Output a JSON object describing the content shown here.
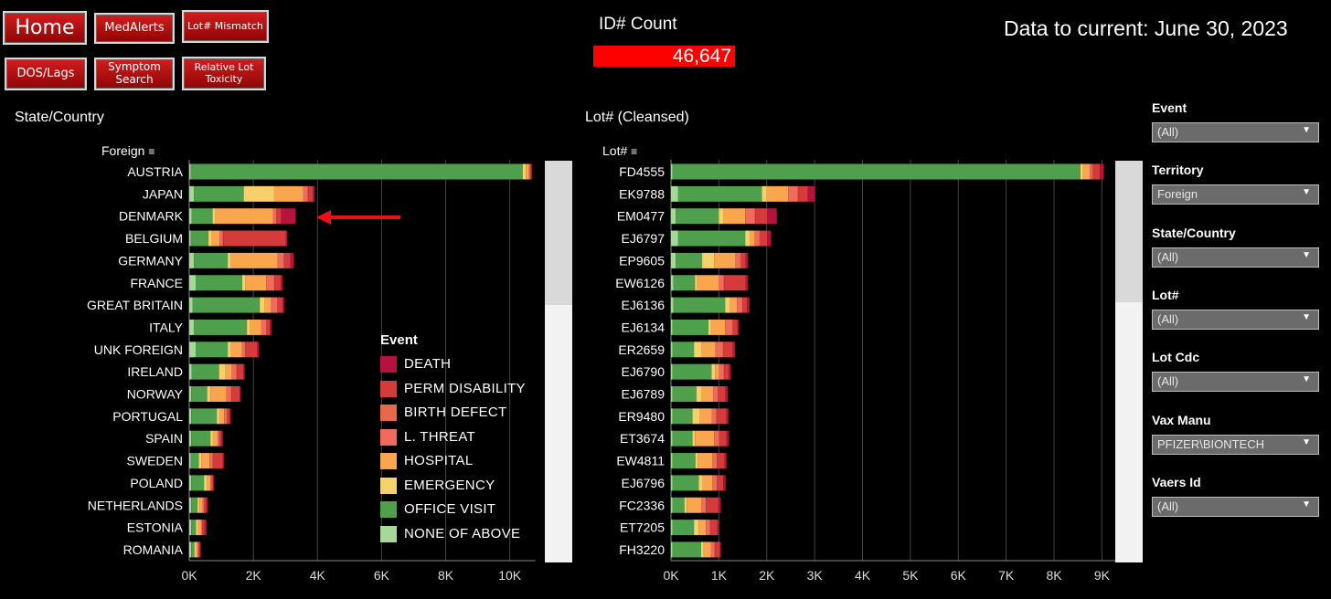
{
  "nav": {
    "home": "Home",
    "medalerts": "MedAlerts",
    "lot_mismatch": "Lot# Mismatch",
    "dos_lags": "DOS/Lags",
    "symptom_search": "Symptom Search",
    "relative_lot_toxicity": "Relative Lot Toxicity"
  },
  "header": {
    "count_label": "ID# Count",
    "count_value": "46,647",
    "data_current": "Data to current: June 30, 2023"
  },
  "colors": {
    "DEATH": "#b5123e",
    "PERM DISABILITY": "#d63b3b",
    "BIRTH DEFECT": "#e66848",
    "L. THREAT": "#f06b5c",
    "HOSPITAL": "#f9a64f",
    "EMERGENCY": "#f5d06b",
    "OFFICE VISIT": "#4ea04c",
    "NONE OF ABOVE": "#a6d89a",
    "count_bg": "#ff0000",
    "nav_red": "#c40f0f"
  },
  "legend": {
    "title": "Event",
    "items": [
      "DEATH",
      "PERM DISABILITY",
      "BIRTH DEFECT",
      "L. THREAT",
      "HOSPITAL",
      "EMERGENCY",
      "OFFICE VISIT",
      "NONE OF ABOVE"
    ]
  },
  "filters": [
    {
      "label": "Event",
      "value": "(All)"
    },
    {
      "label": "Territory",
      "value": "Foreign"
    },
    {
      "label": "State/Country",
      "value": "(All)"
    },
    {
      "label": "Lot#",
      "value": "(All)"
    },
    {
      "label": "Lot Cdc",
      "value": "(All)"
    },
    {
      "label": "Vax Manu",
      "value": "PFIZER\\BIONTECH"
    },
    {
      "label": "Vaers Id",
      "value": "(All)"
    }
  ],
  "chart_data": [
    {
      "type": "bar",
      "orientation": "horizontal",
      "stacked": true,
      "title": "State/Country",
      "dimension_label": "Foreign",
      "categories": [
        "AUSTRIA",
        "JAPAN",
        "DENMARK",
        "BELGIUM",
        "GERMANY",
        "FRANCE",
        "GREAT BRITAIN",
        "ITALY",
        "UNK FOREIGN",
        "IRELAND",
        "NORWAY",
        "PORTUGAL",
        "SPAIN",
        "SWEDEN",
        "POLAND",
        "NETHERLANDS",
        "ESTONIA",
        "ROMANIA"
      ],
      "stack_order": [
        "NONE OF ABOVE",
        "OFFICE VISIT",
        "EMERGENCY",
        "HOSPITAL",
        "L. THREAT",
        "BIRTH DEFECT",
        "PERM DISABILITY",
        "DEATH"
      ],
      "series": [
        {
          "name": "NONE OF ABOVE",
          "values": [
            50,
            150,
            80,
            50,
            150,
            200,
            100,
            150,
            200,
            80,
            60,
            60,
            60,
            50,
            60,
            60,
            60,
            60
          ]
        },
        {
          "name": "OFFICE VISIT",
          "values": [
            10350,
            1550,
            650,
            550,
            1050,
            1450,
            2100,
            1650,
            1000,
            850,
            500,
            800,
            600,
            250,
            400,
            200,
            150,
            100
          ]
        },
        {
          "name": "EMERGENCY",
          "values": [
            100,
            950,
            80,
            100,
            100,
            100,
            150,
            100,
            100,
            200,
            100,
            80,
            80,
            80,
            100,
            60,
            60,
            40
          ]
        },
        {
          "name": "HOSPITAL",
          "values": [
            100,
            900,
            1800,
            250,
            1450,
            650,
            200,
            350,
            350,
            200,
            500,
            150,
            150,
            250,
            100,
            100,
            100,
            60
          ]
        },
        {
          "name": "L. THREAT",
          "values": [
            30,
            150,
            100,
            100,
            200,
            250,
            200,
            150,
            100,
            150,
            150,
            80,
            50,
            100,
            40,
            40,
            40,
            30
          ]
        },
        {
          "name": "BIRTH DEFECT",
          "values": [
            10,
            10,
            10,
            10,
            10,
            10,
            10,
            10,
            10,
            10,
            10,
            10,
            10,
            10,
            10,
            10,
            10,
            10
          ]
        },
        {
          "name": "PERM DISABILITY",
          "values": [
            30,
            150,
            150,
            1950,
            200,
            200,
            150,
            100,
            350,
            200,
            250,
            80,
            50,
            300,
            40,
            60,
            60,
            30
          ]
        },
        {
          "name": "DEATH",
          "values": [
            30,
            50,
            450,
            50,
            100,
            50,
            50,
            50,
            60,
            40,
            30,
            40,
            50,
            40,
            30,
            50,
            60,
            30
          ]
        }
      ],
      "xticks": [
        "0K",
        "2K",
        "4K",
        "6K",
        "8K",
        "10K"
      ],
      "xlim": [
        0,
        10800
      ],
      "annotation": "red arrow pointing at DENMARK"
    },
    {
      "type": "bar",
      "orientation": "horizontal",
      "stacked": true,
      "title": "Lot# (Cleansed)",
      "dimension_label": "Lot#",
      "categories": [
        "FD4555",
        "EK9788",
        "EM0477",
        "EJ6797",
        "EP9605",
        "EW6126",
        "EJ6136",
        "EJ6134",
        "ER2659",
        "EJ6790",
        "EJ6789",
        "ER9480",
        "ET3674",
        "EW4811",
        "EJ6796",
        "FC2336",
        "ET7205",
        "FH3220"
      ],
      "stack_order": [
        "NONE OF ABOVE",
        "OFFICE VISIT",
        "EMERGENCY",
        "HOSPITAL",
        "L. THREAT",
        "BIRTH DEFECT",
        "PERM DISABILITY",
        "DEATH"
      ],
      "series": [
        {
          "name": "NONE OF ABOVE",
          "values": [
            30,
            150,
            100,
            150,
            100,
            50,
            50,
            30,
            30,
            30,
            30,
            30,
            30,
            30,
            30,
            30,
            30,
            30
          ]
        },
        {
          "name": "OFFICE VISIT",
          "values": [
            8520,
            1750,
            900,
            1400,
            550,
            450,
            1080,
            750,
            450,
            820,
            500,
            420,
            420,
            480,
            550,
            250,
            450,
            600
          ]
        },
        {
          "name": "EMERGENCY",
          "values": [
            50,
            100,
            100,
            100,
            250,
            50,
            100,
            50,
            150,
            70,
            100,
            150,
            50,
            50,
            80,
            50,
            100,
            50
          ]
        },
        {
          "name": "HOSPITAL",
          "values": [
            150,
            450,
            450,
            100,
            450,
            450,
            150,
            300,
            300,
            80,
            250,
            250,
            400,
            300,
            200,
            300,
            150,
            150
          ]
        },
        {
          "name": "L. THREAT",
          "values": [
            50,
            200,
            200,
            100,
            100,
            100,
            100,
            150,
            150,
            100,
            100,
            100,
            100,
            100,
            100,
            100,
            80,
            80
          ]
        },
        {
          "name": "BIRTH DEFECT",
          "values": [
            10,
            10,
            10,
            10,
            10,
            10,
            10,
            10,
            10,
            10,
            10,
            10,
            10,
            10,
            10,
            10,
            10,
            10
          ]
        },
        {
          "name": "PERM DISABILITY",
          "values": [
            150,
            200,
            250,
            150,
            100,
            450,
            100,
            100,
            200,
            100,
            150,
            200,
            150,
            150,
            120,
            250,
            150,
            100
          ]
        },
        {
          "name": "DEATH",
          "values": [
            80,
            150,
            200,
            80,
            50,
            50,
            50,
            30,
            50,
            40,
            50,
            40,
            50,
            40,
            50,
            50,
            30,
            20
          ]
        }
      ],
      "xticks": [
        "0K",
        "1K",
        "2K",
        "3K",
        "4K",
        "5K",
        "6K",
        "7K",
        "8K",
        "9K"
      ],
      "xlim": [
        0,
        9700
      ]
    }
  ]
}
